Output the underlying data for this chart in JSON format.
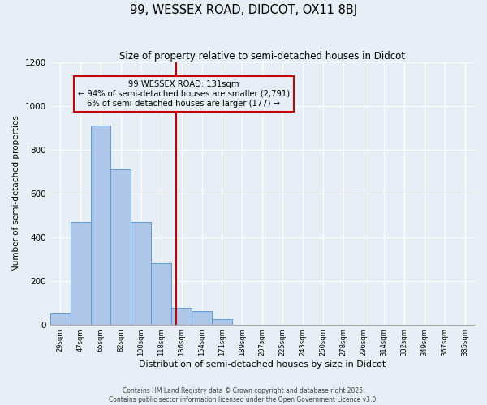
{
  "title": "99, WESSEX ROAD, DIDCOT, OX11 8BJ",
  "subtitle": "Size of property relative to semi-detached houses in Didcot",
  "xlabel": "Distribution of semi-detached houses by size in Didcot",
  "ylabel": "Number of semi-detached properties",
  "tick_labels": [
    "29sqm",
    "47sqm",
    "65sqm",
    "82sqm",
    "100sqm",
    "118sqm",
    "136sqm",
    "154sqm",
    "171sqm",
    "189sqm",
    "207sqm",
    "225sqm",
    "243sqm",
    "260sqm",
    "278sqm",
    "296sqm",
    "314sqm",
    "332sqm",
    "349sqm",
    "367sqm",
    "385sqm"
  ],
  "bar_heights": [
    50,
    470,
    910,
    710,
    470,
    280,
    75,
    60,
    25,
    0,
    0,
    0,
    0,
    0,
    0,
    0,
    0,
    0,
    0,
    0,
    0
  ],
  "n_bars": 21,
  "property_value_idx": 5.72,
  "annotation_title": "99 WESSEX ROAD: 131sqm",
  "annotation_line1": "← 94% of semi-detached houses are smaller (2,791)",
  "annotation_line2": "6% of semi-detached houses are larger (177) →",
  "footer_line1": "Contains HM Land Registry data © Crown copyright and database right 2025.",
  "footer_line2": "Contains public sector information licensed under the Open Government Licence v3.0.",
  "bar_color": "#aec6e8",
  "bar_edge_color": "#5b9bd5",
  "vline_color": "#cc0000",
  "annotation_box_edge_color": "#cc0000",
  "background_color": "#e8eef5",
  "ylim": [
    0,
    1200
  ],
  "yticks": [
    0,
    200,
    400,
    600,
    800,
    1000,
    1200
  ]
}
